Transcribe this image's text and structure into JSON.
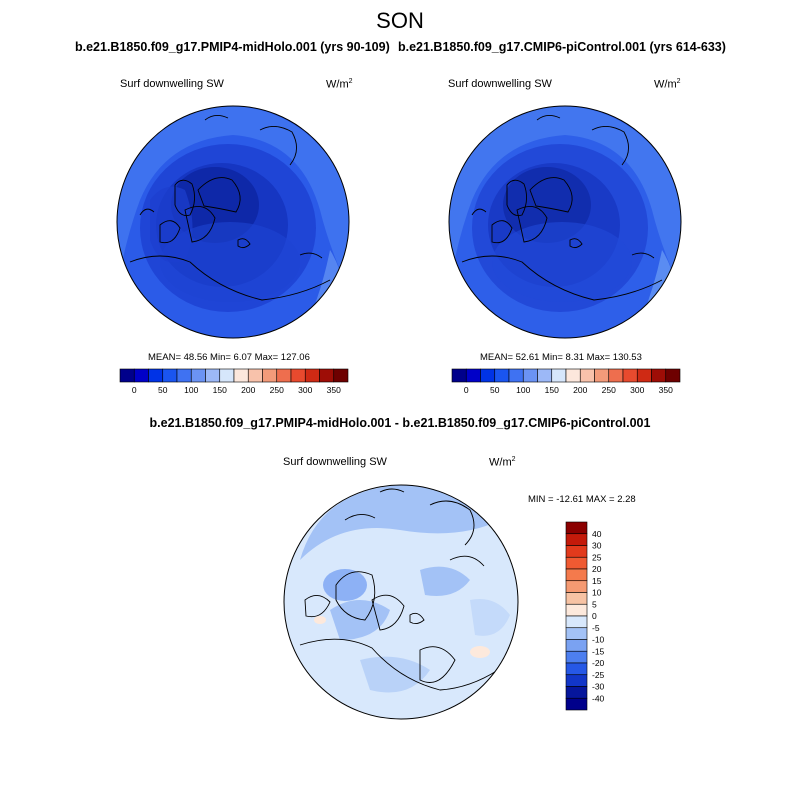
{
  "season": "SON",
  "panels": [
    {
      "title": "b.e21.B1850.f09_g17.PMIP4-midHolo.001 (yrs 90-109)",
      "variable": "Surf downwelling SW",
      "units_base": "W/m",
      "units_exp": "2",
      "stats": "MEAN=  48.56  Min=   6.07  Max= 127.06"
    },
    {
      "title": "b.e21.B1850.f09_g17.CMIP6-piControl.001 (yrs 614-633)",
      "variable": "Surf downwelling SW",
      "units_base": "W/m",
      "units_exp": "2",
      "stats": "MEAN=  52.61  Min=   8.31  Max= 130.53"
    }
  ],
  "difference": {
    "title": "b.e21.B1850.f09_g17.PMIP4-midHolo.001 - b.e21.B1850.f09_g17.CMIP6-piControl.001",
    "variable": "Surf downwelling SW",
    "units_base": "W/m",
    "units_exp": "2",
    "stats": "MIN = -12.61 MAX =   2.28"
  },
  "colorbar_abs": {
    "orientation": "horizontal",
    "labels": [
      "0",
      "50",
      "100",
      "150",
      "200",
      "250",
      "300",
      "350"
    ],
    "colors": [
      "#00008b",
      "#0000c8",
      "#0033e6",
      "#1a55f0",
      "#3f72f2",
      "#6b93f4",
      "#9cb8f7",
      "#d6e6fb",
      "#fce7dc",
      "#f8c2ab",
      "#f39b7a",
      "#ee6e4e",
      "#e84a2e",
      "#cf2a14",
      "#9e0d06",
      "#6e0000"
    ]
  },
  "colorbar_diff": {
    "orientation": "vertical",
    "labels": [
      "40",
      "30",
      "25",
      "20",
      "15",
      "10",
      "5",
      "0",
      "-5",
      "-10",
      "-15",
      "-20",
      "-25",
      "-30",
      "-40"
    ],
    "colors": [
      "#8b0000",
      "#c41a0a",
      "#e23a1c",
      "#f05a32",
      "#f47a4c",
      "#f59a72",
      "#f7c3a4",
      "#fde9dc",
      "#d8e8fc",
      "#a3c2f6",
      "#7aa2f2",
      "#4d7ff0",
      "#2658e6",
      "#1236c8",
      "#06169c",
      "#00008b"
    ]
  }
}
